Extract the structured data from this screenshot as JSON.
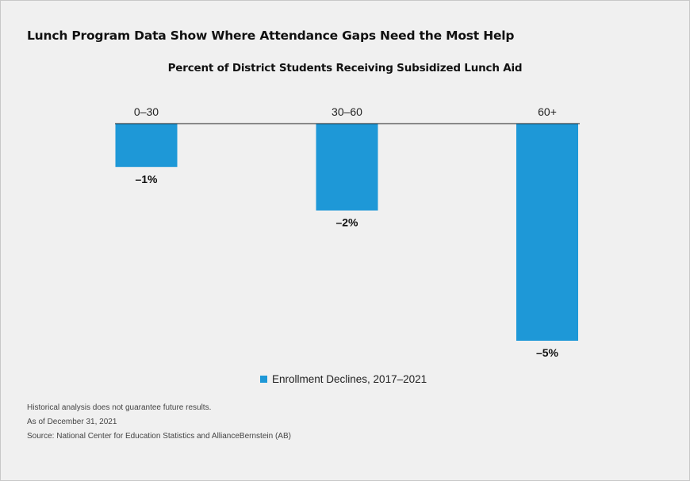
{
  "title": "Lunch Program Data Show Where Attendance Gaps Need the Most Help",
  "chart_data": {
    "type": "bar",
    "title": "Percent of District Students Receiving Subsidized Lunch Aid",
    "categories": [
      "0–30",
      "30–60",
      "60+"
    ],
    "series": [
      {
        "name": "Enrollment Declines, 2017–2021",
        "values": [
          -1,
          -2,
          -5
        ],
        "labels": [
          "–1%",
          "–2%",
          "–5%"
        ]
      }
    ],
    "ylim": [
      -5,
      0
    ],
    "grid": false,
    "legend_position": "bottom",
    "colors": {
      "bar": "#1e98d7",
      "baseline": "#222222"
    }
  },
  "notes": [
    "Historical analysis does not guarantee future results.",
    "As of December 31, 2021",
    "Source: National Center for Education Statistics and AllianceBernstein (AB)"
  ]
}
